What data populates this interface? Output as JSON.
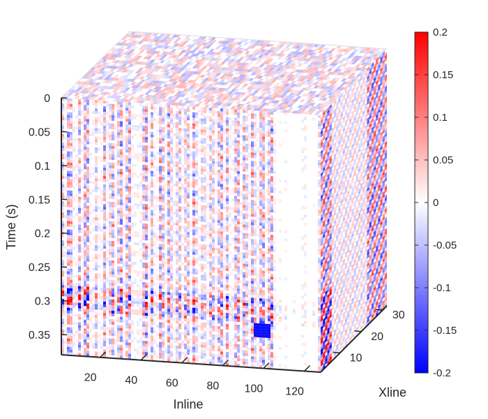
{
  "chart_data": {
    "type": "heatmap",
    "subtype": "3d-seismic-cube",
    "xlabel": "Inline",
    "ylabel": "Xline",
    "zlabel": "Time (s)",
    "x_ticks": [
      "20",
      "40",
      "60",
      "80",
      "100",
      "120"
    ],
    "y_ticks": [
      "10",
      "20",
      "30"
    ],
    "z_ticks": [
      "0",
      "0.05",
      "0.1",
      "0.15",
      "0.2",
      "0.25",
      "0.3",
      "0.35"
    ],
    "xlim": [
      1,
      128
    ],
    "ylim": [
      1,
      32
    ],
    "zlim": [
      0,
      0.38
    ],
    "colorbar": {
      "ticks": [
        "0.2",
        "0.15",
        "0.1",
        "0.05",
        "0",
        "-0.05",
        "-0.1",
        "-0.15",
        "-0.2"
      ],
      "range": [
        -0.2,
        0.2
      ],
      "colormap": "blue-white-red",
      "colors": {
        "min": "#0000ff",
        "mid": "#ffffff",
        "max": "#ff0000"
      }
    },
    "grid": false,
    "notes_strong_events": [
      {
        "inline": 10,
        "time": 0.29,
        "sign": "mixed"
      },
      {
        "inline": 103,
        "time": 0.325,
        "sign": "negative"
      }
    ]
  }
}
